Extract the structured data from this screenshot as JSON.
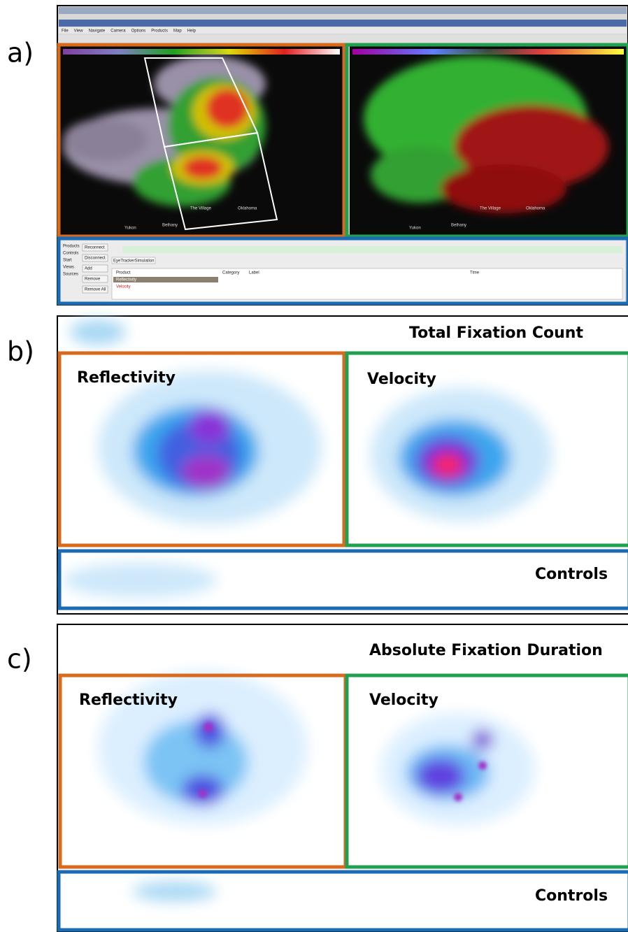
{
  "panels": [
    {
      "label": "a)"
    },
    {
      "label": "b)",
      "title": "Total Fixation Count",
      "regions": [
        "Reflectivity",
        "Velocity",
        "Controls"
      ]
    },
    {
      "label": "c)",
      "title": "Absolute Fixation Duration",
      "regions": [
        "Reflectivity",
        "Velocity",
        "Controls"
      ]
    }
  ],
  "screenshot": {
    "menu": [
      "File",
      "View",
      "Navigate",
      "Camera",
      "Options",
      "Products",
      "Map",
      "Help"
    ],
    "side_tabs": [
      "Products",
      "Controls",
      "Start",
      "Views",
      "Sources"
    ],
    "buttons": [
      "Reconnect",
      "Disconnect",
      "Add",
      "Remove",
      "Remove All"
    ],
    "tab": "EyeTrackerSimulation",
    "table_headers": [
      "Product",
      "Category",
      "Label",
      "Time"
    ],
    "products": [
      "Reflectivity",
      "Velocity"
    ],
    "map_labels": [
      "Yukon",
      "Bethany",
      "The Village",
      "Oklahoma"
    ]
  }
}
